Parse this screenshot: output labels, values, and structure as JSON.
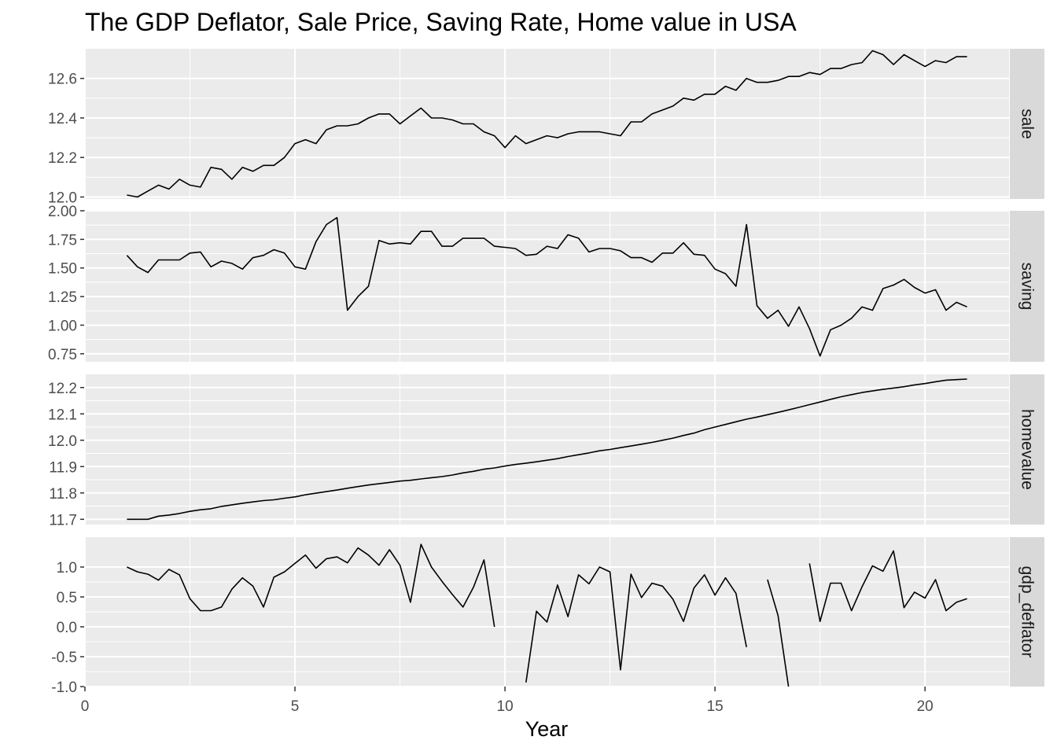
{
  "chart_data": {
    "type": "line",
    "title": "The GDP Deflator, Sale Price, Saving Rate, Home value in USA",
    "xlabel": "Year",
    "xlim": [
      0,
      22
    ],
    "x_ticks": [
      0,
      5,
      10,
      15,
      20
    ],
    "x_tick_labels": [
      "0",
      "5",
      "10",
      "15",
      "20"
    ],
    "grid": true,
    "layout": "facets stacked vertically, strip labels on right",
    "x": [
      1.0,
      1.25,
      1.5,
      1.75,
      2.0,
      2.25,
      2.5,
      2.75,
      3.0,
      3.25,
      3.5,
      3.75,
      4.0,
      4.25,
      4.5,
      4.75,
      5.0,
      5.25,
      5.5,
      5.75,
      6.0,
      6.25,
      6.5,
      6.75,
      7.0,
      7.25,
      7.5,
      7.75,
      8.0,
      8.25,
      8.5,
      8.75,
      9.0,
      9.25,
      9.5,
      9.75,
      10.0,
      10.25,
      10.5,
      10.75,
      11.0,
      11.25,
      11.5,
      11.75,
      12.0,
      12.25,
      12.5,
      12.75,
      13.0,
      13.25,
      13.5,
      13.75,
      14.0,
      14.25,
      14.5,
      14.75,
      15.0,
      15.25,
      15.5,
      15.75,
      16.0,
      16.25,
      16.5,
      16.75,
      17.0,
      17.25,
      17.5,
      17.75,
      18.0,
      18.25,
      18.5,
      18.75,
      19.0,
      19.25,
      19.5,
      19.75,
      20.0,
      20.25,
      20.5,
      20.75,
      21.0
    ],
    "panels": [
      {
        "strip": "sale",
        "ylim": [
          11.99,
          12.75
        ],
        "y_ticks": [
          12.0,
          12.2,
          12.4,
          12.6
        ],
        "y_tick_labels": [
          "12.0",
          "12.2",
          "12.4",
          "12.6"
        ],
        "values": [
          12.01,
          12.0,
          12.03,
          12.06,
          12.04,
          12.09,
          12.06,
          12.05,
          12.15,
          12.14,
          12.09,
          12.15,
          12.13,
          12.16,
          12.16,
          12.2,
          12.27,
          12.29,
          12.27,
          12.34,
          12.36,
          12.36,
          12.37,
          12.4,
          12.42,
          12.42,
          12.37,
          12.41,
          12.45,
          12.4,
          12.4,
          12.39,
          12.37,
          12.37,
          12.33,
          12.31,
          12.25,
          12.31,
          12.27,
          12.29,
          12.31,
          12.3,
          12.32,
          12.33,
          12.33,
          12.33,
          12.32,
          12.31,
          12.38,
          12.38,
          12.42,
          12.44,
          12.46,
          12.5,
          12.49,
          12.52,
          12.52,
          12.56,
          12.54,
          12.6,
          12.58,
          12.58,
          12.59,
          12.61,
          12.61,
          12.63,
          12.62,
          12.65,
          12.65,
          12.67,
          12.68,
          12.74,
          12.72,
          12.67,
          12.72,
          12.69,
          12.66,
          12.69,
          12.68,
          12.71,
          12.71
        ]
      },
      {
        "strip": "saving",
        "ylim": [
          0.68,
          2.0
        ],
        "y_ticks": [
          0.75,
          1.0,
          1.25,
          1.5,
          1.75,
          2.0
        ],
        "y_tick_labels": [
          "0.75",
          "1.00",
          "1.25",
          "1.50",
          "1.75",
          "2.00"
        ],
        "values": [
          1.61,
          1.51,
          1.46,
          1.57,
          1.57,
          1.57,
          1.63,
          1.64,
          1.51,
          1.56,
          1.54,
          1.49,
          1.59,
          1.61,
          1.66,
          1.63,
          1.51,
          1.49,
          1.73,
          1.88,
          1.94,
          1.13,
          1.25,
          1.34,
          1.74,
          1.71,
          1.72,
          1.71,
          1.82,
          1.82,
          1.69,
          1.69,
          1.76,
          1.76,
          1.76,
          1.69,
          1.68,
          1.67,
          1.61,
          1.62,
          1.69,
          1.67,
          1.79,
          1.76,
          1.64,
          1.67,
          1.67,
          1.65,
          1.59,
          1.59,
          1.55,
          1.63,
          1.63,
          1.72,
          1.62,
          1.61,
          1.49,
          1.45,
          1.34,
          1.88,
          1.17,
          1.06,
          1.13,
          0.99,
          1.16,
          0.97,
          0.73,
          0.96,
          1.0,
          1.06,
          1.16,
          1.13,
          1.32,
          1.35,
          1.4,
          1.33,
          1.28,
          1.31,
          1.13,
          1.2,
          1.16
        ]
      },
      {
        "strip": "homevalue",
        "ylim": [
          11.68,
          12.25
        ],
        "y_ticks": [
          11.7,
          11.8,
          11.9,
          12.0,
          12.1,
          12.2
        ],
        "y_tick_labels": [
          "11.7",
          "11.8",
          "11.9",
          "12.0",
          "12.1",
          "12.2"
        ],
        "values": [
          11.7,
          11.7,
          11.7,
          11.712,
          11.716,
          11.722,
          11.73,
          11.736,
          11.74,
          11.749,
          11.755,
          11.761,
          11.766,
          11.771,
          11.774,
          11.78,
          11.785,
          11.793,
          11.799,
          11.805,
          11.811,
          11.818,
          11.824,
          11.83,
          11.835,
          11.84,
          11.845,
          11.848,
          11.853,
          11.858,
          11.862,
          11.868,
          11.876,
          11.882,
          11.89,
          11.895,
          11.902,
          11.908,
          11.913,
          11.918,
          11.924,
          11.93,
          11.938,
          11.945,
          11.952,
          11.96,
          11.965,
          11.972,
          11.978,
          11.985,
          11.992,
          12.0,
          12.008,
          12.018,
          12.027,
          12.04,
          12.05,
          12.06,
          12.07,
          12.08,
          12.088,
          12.097,
          12.106,
          12.115,
          12.125,
          12.135,
          12.145,
          12.155,
          12.165,
          12.173,
          12.181,
          12.187,
          12.193,
          12.198,
          12.203,
          12.21,
          12.215,
          12.222,
          12.228,
          12.23,
          12.232
        ]
      },
      {
        "strip": "gdp_deflator",
        "ylim": [
          -1.0,
          1.5
        ],
        "y_ticks": [
          -1.0,
          -0.5,
          0.0,
          0.5,
          1.0
        ],
        "y_tick_labels": [
          "-1.0",
          "-0.5",
          "0.0",
          "0.5",
          "1.0"
        ],
        "values": [
          1.0,
          0.92,
          0.88,
          0.78,
          0.96,
          0.87,
          0.47,
          0.27,
          0.27,
          0.33,
          0.63,
          0.82,
          0.68,
          0.33,
          0.83,
          0.92,
          1.06,
          1.2,
          0.98,
          1.14,
          1.17,
          1.07,
          1.32,
          1.2,
          1.03,
          1.29,
          1.03,
          0.41,
          1.38,
          1.0,
          0.76,
          0.54,
          0.33,
          0.66,
          1.12,
          0.0,
          null,
          null,
          -0.93,
          0.26,
          0.08,
          0.7,
          0.17,
          0.87,
          0.72,
          1.0,
          0.92,
          -0.72,
          0.88,
          0.49,
          0.73,
          0.68,
          0.46,
          0.09,
          0.65,
          0.87,
          0.53,
          0.82,
          0.56,
          -0.34,
          null,
          0.79,
          0.19,
          -1.0,
          null,
          1.06,
          0.09,
          0.73,
          0.73,
          0.27,
          0.67,
          1.02,
          0.93,
          1.27,
          0.32,
          0.58,
          0.48,
          0.79,
          0.27,
          0.41,
          0.47
        ]
      }
    ]
  }
}
